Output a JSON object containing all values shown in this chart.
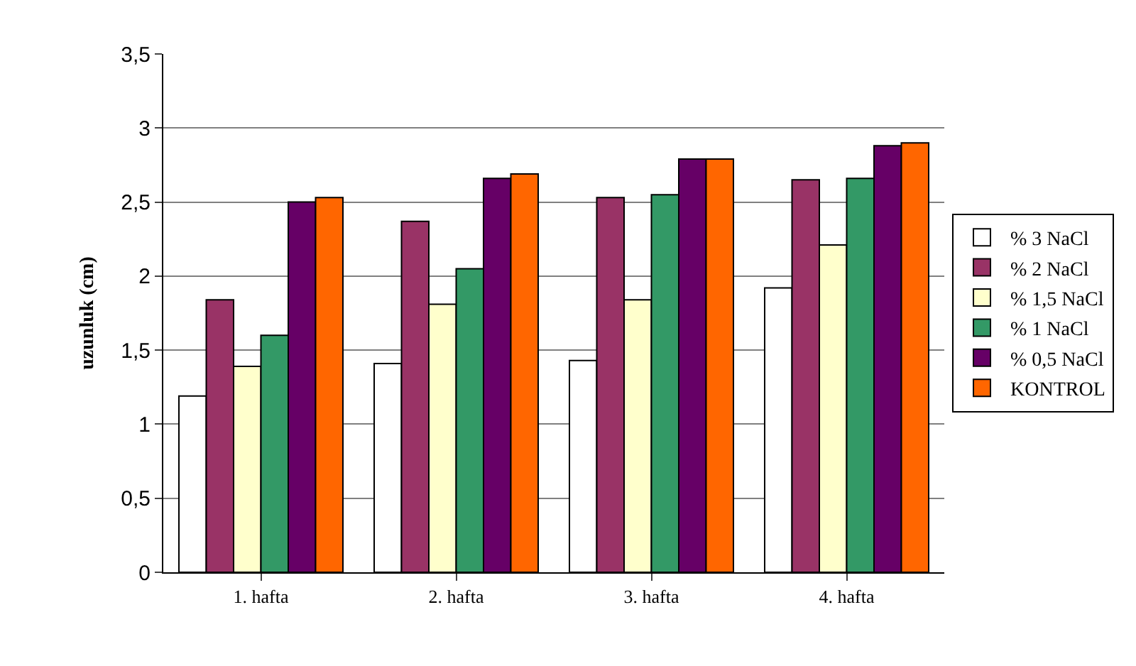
{
  "chart_data": {
    "type": "bar",
    "ylabel": "uzunluk (cm)",
    "categories": [
      "1. hafta",
      "2. hafta",
      "3. hafta",
      "4. hafta"
    ],
    "series": [
      {
        "name": "% 3 NaCl",
        "color": "#ffffff",
        "values": [
          1.19,
          1.41,
          1.43,
          1.92
        ]
      },
      {
        "name": "% 2 NaCl",
        "color": "#993366",
        "values": [
          1.84,
          2.37,
          2.53,
          2.65
        ]
      },
      {
        "name": "% 1,5 NaCl",
        "color": "#ffffcc",
        "values": [
          1.39,
          1.81,
          1.84,
          2.21
        ]
      },
      {
        "name": "% 1 NaCl",
        "color": "#339966",
        "values": [
          1.6,
          2.05,
          2.55,
          2.66
        ]
      },
      {
        "name": "% 0,5 NaCl",
        "color": "#660066",
        "values": [
          2.5,
          2.66,
          2.79,
          2.88
        ]
      },
      {
        "name": "KONTROL",
        "color": "#ff6600",
        "values": [
          2.53,
          2.69,
          2.79,
          2.9
        ]
      }
    ],
    "ylim": [
      0,
      3.5
    ],
    "yticks": [
      0,
      {
        "value": 0.5,
        "label": "0,5"
      },
      1,
      {
        "value": 1.5,
        "label": "1,5"
      },
      2,
      {
        "value": 2.5,
        "label": "2,5"
      },
      3,
      {
        "value": 3.5,
        "label": "3,5"
      }
    ],
    "grid": "y",
    "legend": "right"
  }
}
